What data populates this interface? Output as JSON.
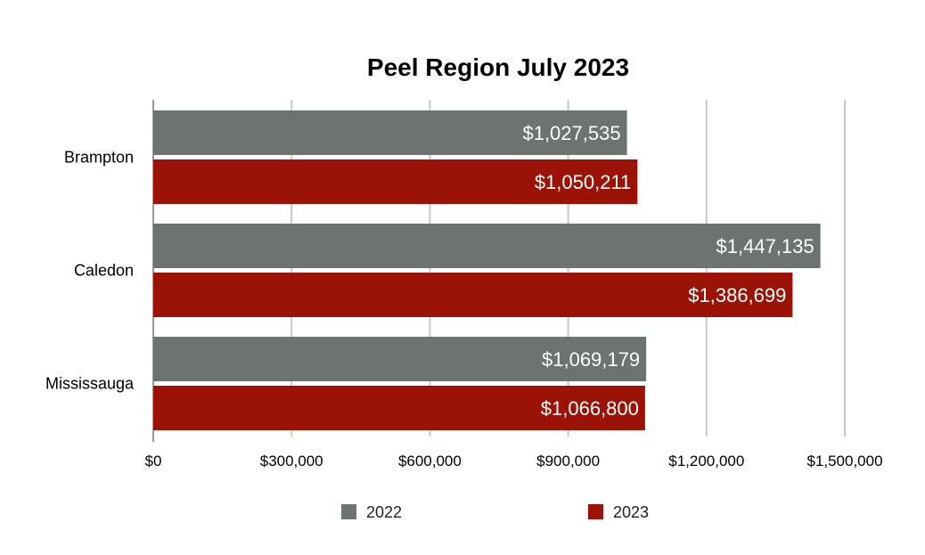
{
  "chart_data": {
    "type": "bar",
    "orientation": "horizontal",
    "title": "Peel Region July 2023",
    "xlabel": "",
    "ylabel": "",
    "categories": [
      "Brampton",
      "Caledon",
      "Mississauga"
    ],
    "series": [
      {
        "name": "2022",
        "color": "#6c7370",
        "values": [
          1027535,
          1447135,
          1069179
        ],
        "labels": [
          "$1,027,535",
          "$1,447,135",
          "$1,069,179"
        ]
      },
      {
        "name": "2023",
        "color": "#9a1306",
        "values": [
          1050211,
          1386699,
          1066800
        ],
        "labels": [
          "$1,050,211",
          "$1,386,699",
          "$1,066,800"
        ]
      }
    ],
    "xlim": [
      0,
      1500000
    ],
    "xticks": [
      0,
      300000,
      600000,
      900000,
      1200000,
      1500000
    ],
    "xtick_labels": [
      "$0",
      "$300,000",
      "$600,000",
      "$900,000",
      "$1,200,000",
      "$1,500,000"
    ],
    "grid": true,
    "legend_position": "bottom"
  }
}
